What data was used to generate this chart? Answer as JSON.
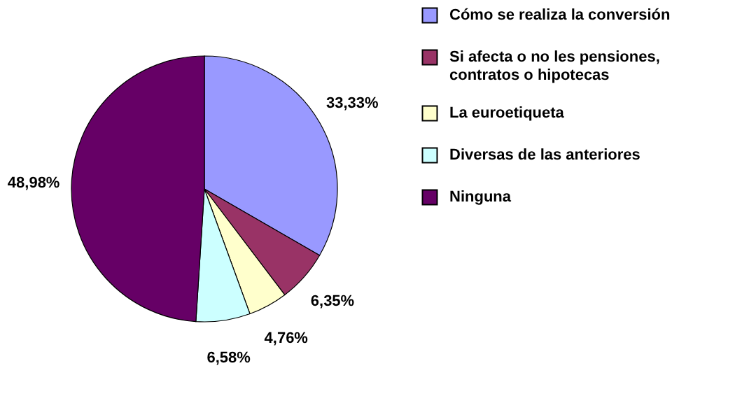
{
  "chart_data": {
    "type": "pie",
    "categories": [
      "Cómo se realiza la conversión",
      "Si afecta o no les pensiones, contratos o hipotecas",
      "La euroetiqueta",
      "Diversas de las anteriores",
      "Ninguna"
    ],
    "values": [
      33.33,
      6.35,
      4.76,
      6.58,
      48.98
    ],
    "colors": [
      "#9999ff",
      "#993366",
      "#ffffcc",
      "#ccffff",
      "#660066"
    ],
    "value_labels": [
      "33,33%",
      "6,35%",
      "4,76%",
      "6,58%",
      "48,98%"
    ],
    "legend": "right"
  }
}
